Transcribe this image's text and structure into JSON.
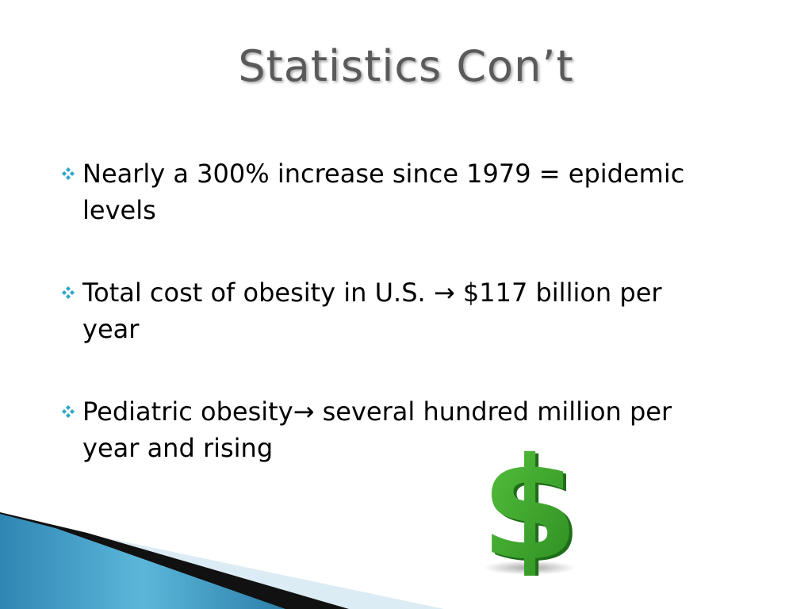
{
  "slide": {
    "title": "Statistics Con’t",
    "bullets": [
      {
        "text": "Nearly a 300% increase since 1979 = epidemic levels"
      },
      {
        "text": "Total cost of obesity in U.S. → $117 billion per year"
      },
      {
        "text": "Pediatric obesity→ several hundred million per year and rising"
      }
    ],
    "bullet_icon": "four-diamond-bullet-icon",
    "image_icon": "dollar-sign-icon",
    "colors": {
      "title": "#5a5a5a",
      "bullet_icon": "#2aa6c9",
      "dollar": "#3ea82c",
      "band_blue": "#3b9bc4",
      "band_dark": "#111111",
      "band_light": "#d9edf5"
    }
  }
}
